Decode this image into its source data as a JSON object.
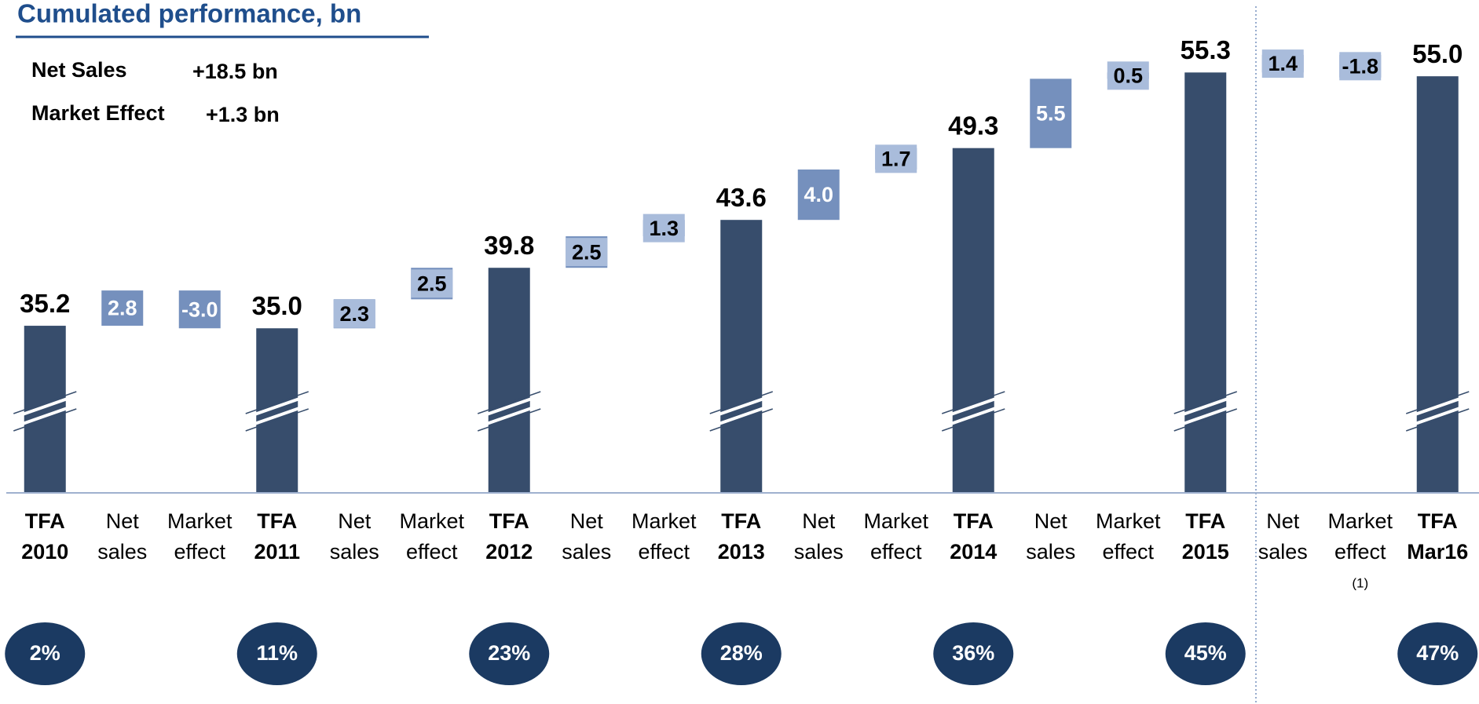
{
  "chart_data": {
    "type": "waterfall",
    "title": "Cumulated performance, bn",
    "summary": [
      {
        "label": "Net Sales",
        "value": "+18.5 bn"
      },
      {
        "label": "Market Effect",
        "value": "+1.3 bn"
      }
    ],
    "categories": [
      "TFA 2010",
      "Net sales",
      "Market effect",
      "TFA 2011",
      "Net sales",
      "Market effect",
      "TFA 2012",
      "Net sales",
      "Market effect",
      "TFA 2013",
      "Net sales",
      "Market effect",
      "TFA 2014",
      "Net sales",
      "Market effect",
      "TFA 2015",
      "Net sales",
      "Market effect",
      "TFA Mar16"
    ],
    "category_notes": [
      null,
      null,
      null,
      null,
      null,
      null,
      null,
      null,
      null,
      null,
      null,
      null,
      null,
      null,
      null,
      null,
      null,
      "(1)",
      null
    ],
    "measures": [
      "total",
      "relative",
      "relative",
      "total",
      "relative",
      "relative",
      "total",
      "relative",
      "relative",
      "total",
      "relative",
      "relative",
      "total",
      "relative",
      "relative",
      "total",
      "relative",
      "relative",
      "total"
    ],
    "values": [
      35.2,
      2.8,
      -3.0,
      35.0,
      2.3,
      2.5,
      39.8,
      2.5,
      1.3,
      43.6,
      4.0,
      1.7,
      49.3,
      5.5,
      0.5,
      55.3,
      1.4,
      -1.8,
      55.0
    ],
    "value_labels": [
      "35.2",
      "2.8",
      "-3.0",
      "35.0",
      "2.3",
      "2.5",
      "39.8",
      "2.5",
      "1.3",
      "43.6",
      "4.0",
      "1.7",
      "49.3",
      "5.5",
      "0.5",
      "55.3",
      "1.4",
      "-1.8",
      "55.0"
    ],
    "shares": [
      2,
      null,
      null,
      11,
      null,
      null,
      23,
      null,
      null,
      28,
      null,
      null,
      36,
      null,
      null,
      45,
      null,
      null,
      47
    ],
    "share_labels": [
      "2%",
      null,
      null,
      "11%",
      null,
      null,
      "23%",
      null,
      null,
      "28%",
      null,
      null,
      "36%",
      null,
      null,
      "45%",
      null,
      null,
      "47%"
    ],
    "total_color": "#374d6c",
    "relative_color": "#7590bd",
    "share_color": "#1b3a62",
    "title_color": "#1f4e8c",
    "ylim": [
      22,
      58
    ]
  }
}
